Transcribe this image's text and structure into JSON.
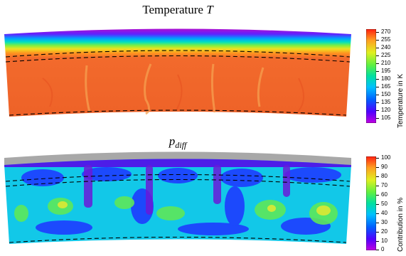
{
  "top_panel": {
    "title_main": "Temperature",
    "title_var": "T",
    "colorbar_label": "Temperature in K",
    "colorbar_ticks": [
      "270",
      "255",
      "240",
      "225",
      "210",
      "195",
      "180",
      "165",
      "150",
      "135",
      "120",
      "105"
    ]
  },
  "bottom_panel": {
    "title_var": "p",
    "title_sub": "diff",
    "colorbar_label": "Contribution in %",
    "colorbar_ticks": [
      "100",
      "90",
      "80",
      "70",
      "60",
      "50",
      "40",
      "30",
      "20",
      "10",
      "0"
    ]
  }
}
